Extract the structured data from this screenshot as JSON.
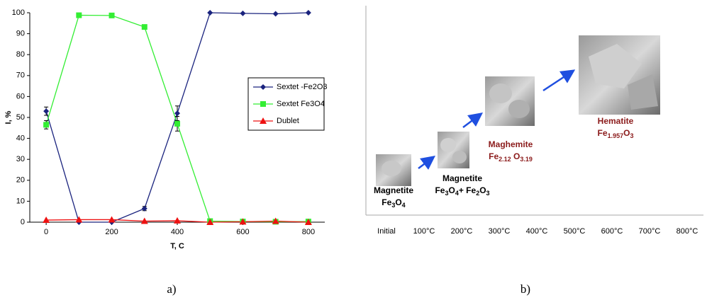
{
  "chart_data": {
    "type": "line",
    "x": [
      0,
      100,
      200,
      300,
      400,
      500,
      600,
      700,
      800
    ],
    "xlim": [
      -50,
      850
    ],
    "xticks": [
      0,
      200,
      400,
      600,
      800
    ],
    "ylim": [
      0,
      100
    ],
    "yticks": [
      0,
      10,
      20,
      30,
      40,
      50,
      60,
      70,
      80,
      90,
      100
    ],
    "xlabel": "T, C",
    "ylabel": "I, %",
    "legend": "right",
    "series": [
      {
        "name": "Sextet -Fe2O3",
        "color": "#1a237e",
        "marker": "diamond",
        "values": [
          53,
          0,
          0,
          6.5,
          52,
          100,
          99.7,
          99.5,
          100
        ],
        "errors": [
          2,
          null,
          null,
          1,
          3.5,
          null,
          null,
          null,
          null
        ]
      },
      {
        "name": "Sextet Fe3O4",
        "color": "#33ee33",
        "marker": "square",
        "values": [
          46.5,
          98.8,
          98.7,
          93.2,
          47,
          0.5,
          0.3,
          0.2,
          0.3
        ],
        "errors": [
          2,
          null,
          null,
          null,
          3.5,
          null,
          null,
          null,
          null
        ]
      },
      {
        "name": "Dublet",
        "color": "#ee1111",
        "marker": "triangle",
        "values": [
          1,
          1.2,
          1.2,
          0.5,
          0.7,
          0,
          0.2,
          0.5,
          0
        ],
        "errors": [
          null,
          null,
          null,
          null,
          null,
          null,
          null,
          null,
          null
        ]
      }
    ]
  },
  "panel_b": {
    "categories": [
      "Initial",
      "100°C",
      "200°C",
      "300°C",
      "400°C",
      "500°C",
      "600°C",
      "700°C",
      "800°C"
    ],
    "phases": [
      {
        "name": "Magnetite",
        "formula": [
          "Fe",
          "3",
          "O",
          "4"
        ]
      },
      {
        "name": "Magnetite",
        "formula": [
          "Fe",
          "3",
          "O",
          "4",
          "+ Fe",
          "2",
          "O",
          "3"
        ]
      },
      {
        "name": "Maghemite",
        "formula": [
          "Fe",
          "2.12",
          " O",
          "3.19"
        ]
      },
      {
        "name": "Hematite",
        "formula": [
          "Fe",
          "1.957",
          "O",
          "3"
        ]
      }
    ]
  },
  "captions": [
    "a)",
    "b)"
  ]
}
